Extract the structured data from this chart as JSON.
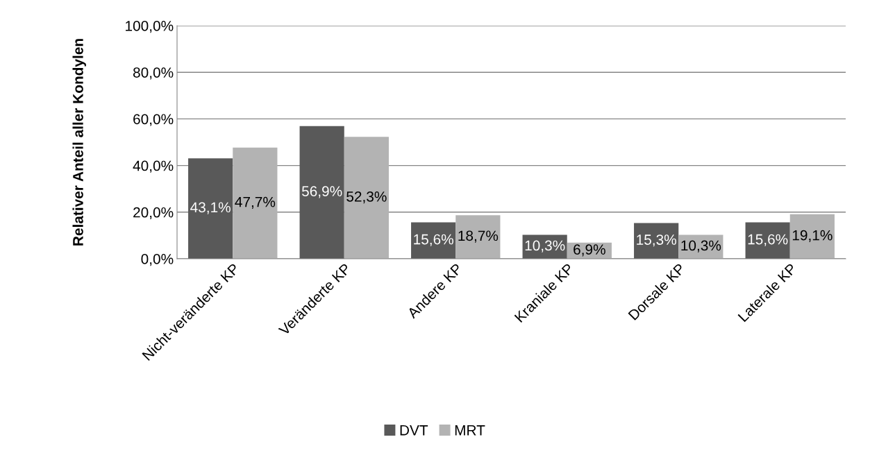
{
  "chart_data": {
    "type": "bar",
    "ylabel": "Relativer Anteil aller Kondylen",
    "categories": [
      "Nicht-veränderte KP",
      "Veränderte KP",
      "Andere KP",
      "Kraniale KP",
      "Dorsale KP",
      "Laterale KP"
    ],
    "series": [
      {
        "name": "DVT",
        "color": "#595959",
        "values": [
          43.1,
          56.9,
          15.6,
          10.3,
          15.3,
          15.6
        ],
        "value_labels": [
          "43,1%",
          "56,9%",
          "15,6%",
          "10,3%",
          "15,3%",
          "15,6%"
        ]
      },
      {
        "name": "MRT",
        "color": "#b3b3b3",
        "values": [
          47.7,
          52.3,
          18.7,
          6.9,
          10.3,
          19.1
        ],
        "value_labels": [
          "47,7%",
          "52,3%",
          "18,7%",
          "6,9%",
          "10,3%",
          "19,1%"
        ]
      }
    ],
    "ylim": [
      0,
      100
    ],
    "yticks": [
      {
        "value": 0,
        "label": "0,0%"
      },
      {
        "value": 20,
        "label": "20,0%"
      },
      {
        "value": 40,
        "label": "40,0%"
      },
      {
        "value": 60,
        "label": "60,0%"
      },
      {
        "value": 80,
        "label": "80,0%"
      },
      {
        "value": 100,
        "label": "100,0%"
      }
    ],
    "grid": "y",
    "legend": "bottom"
  }
}
